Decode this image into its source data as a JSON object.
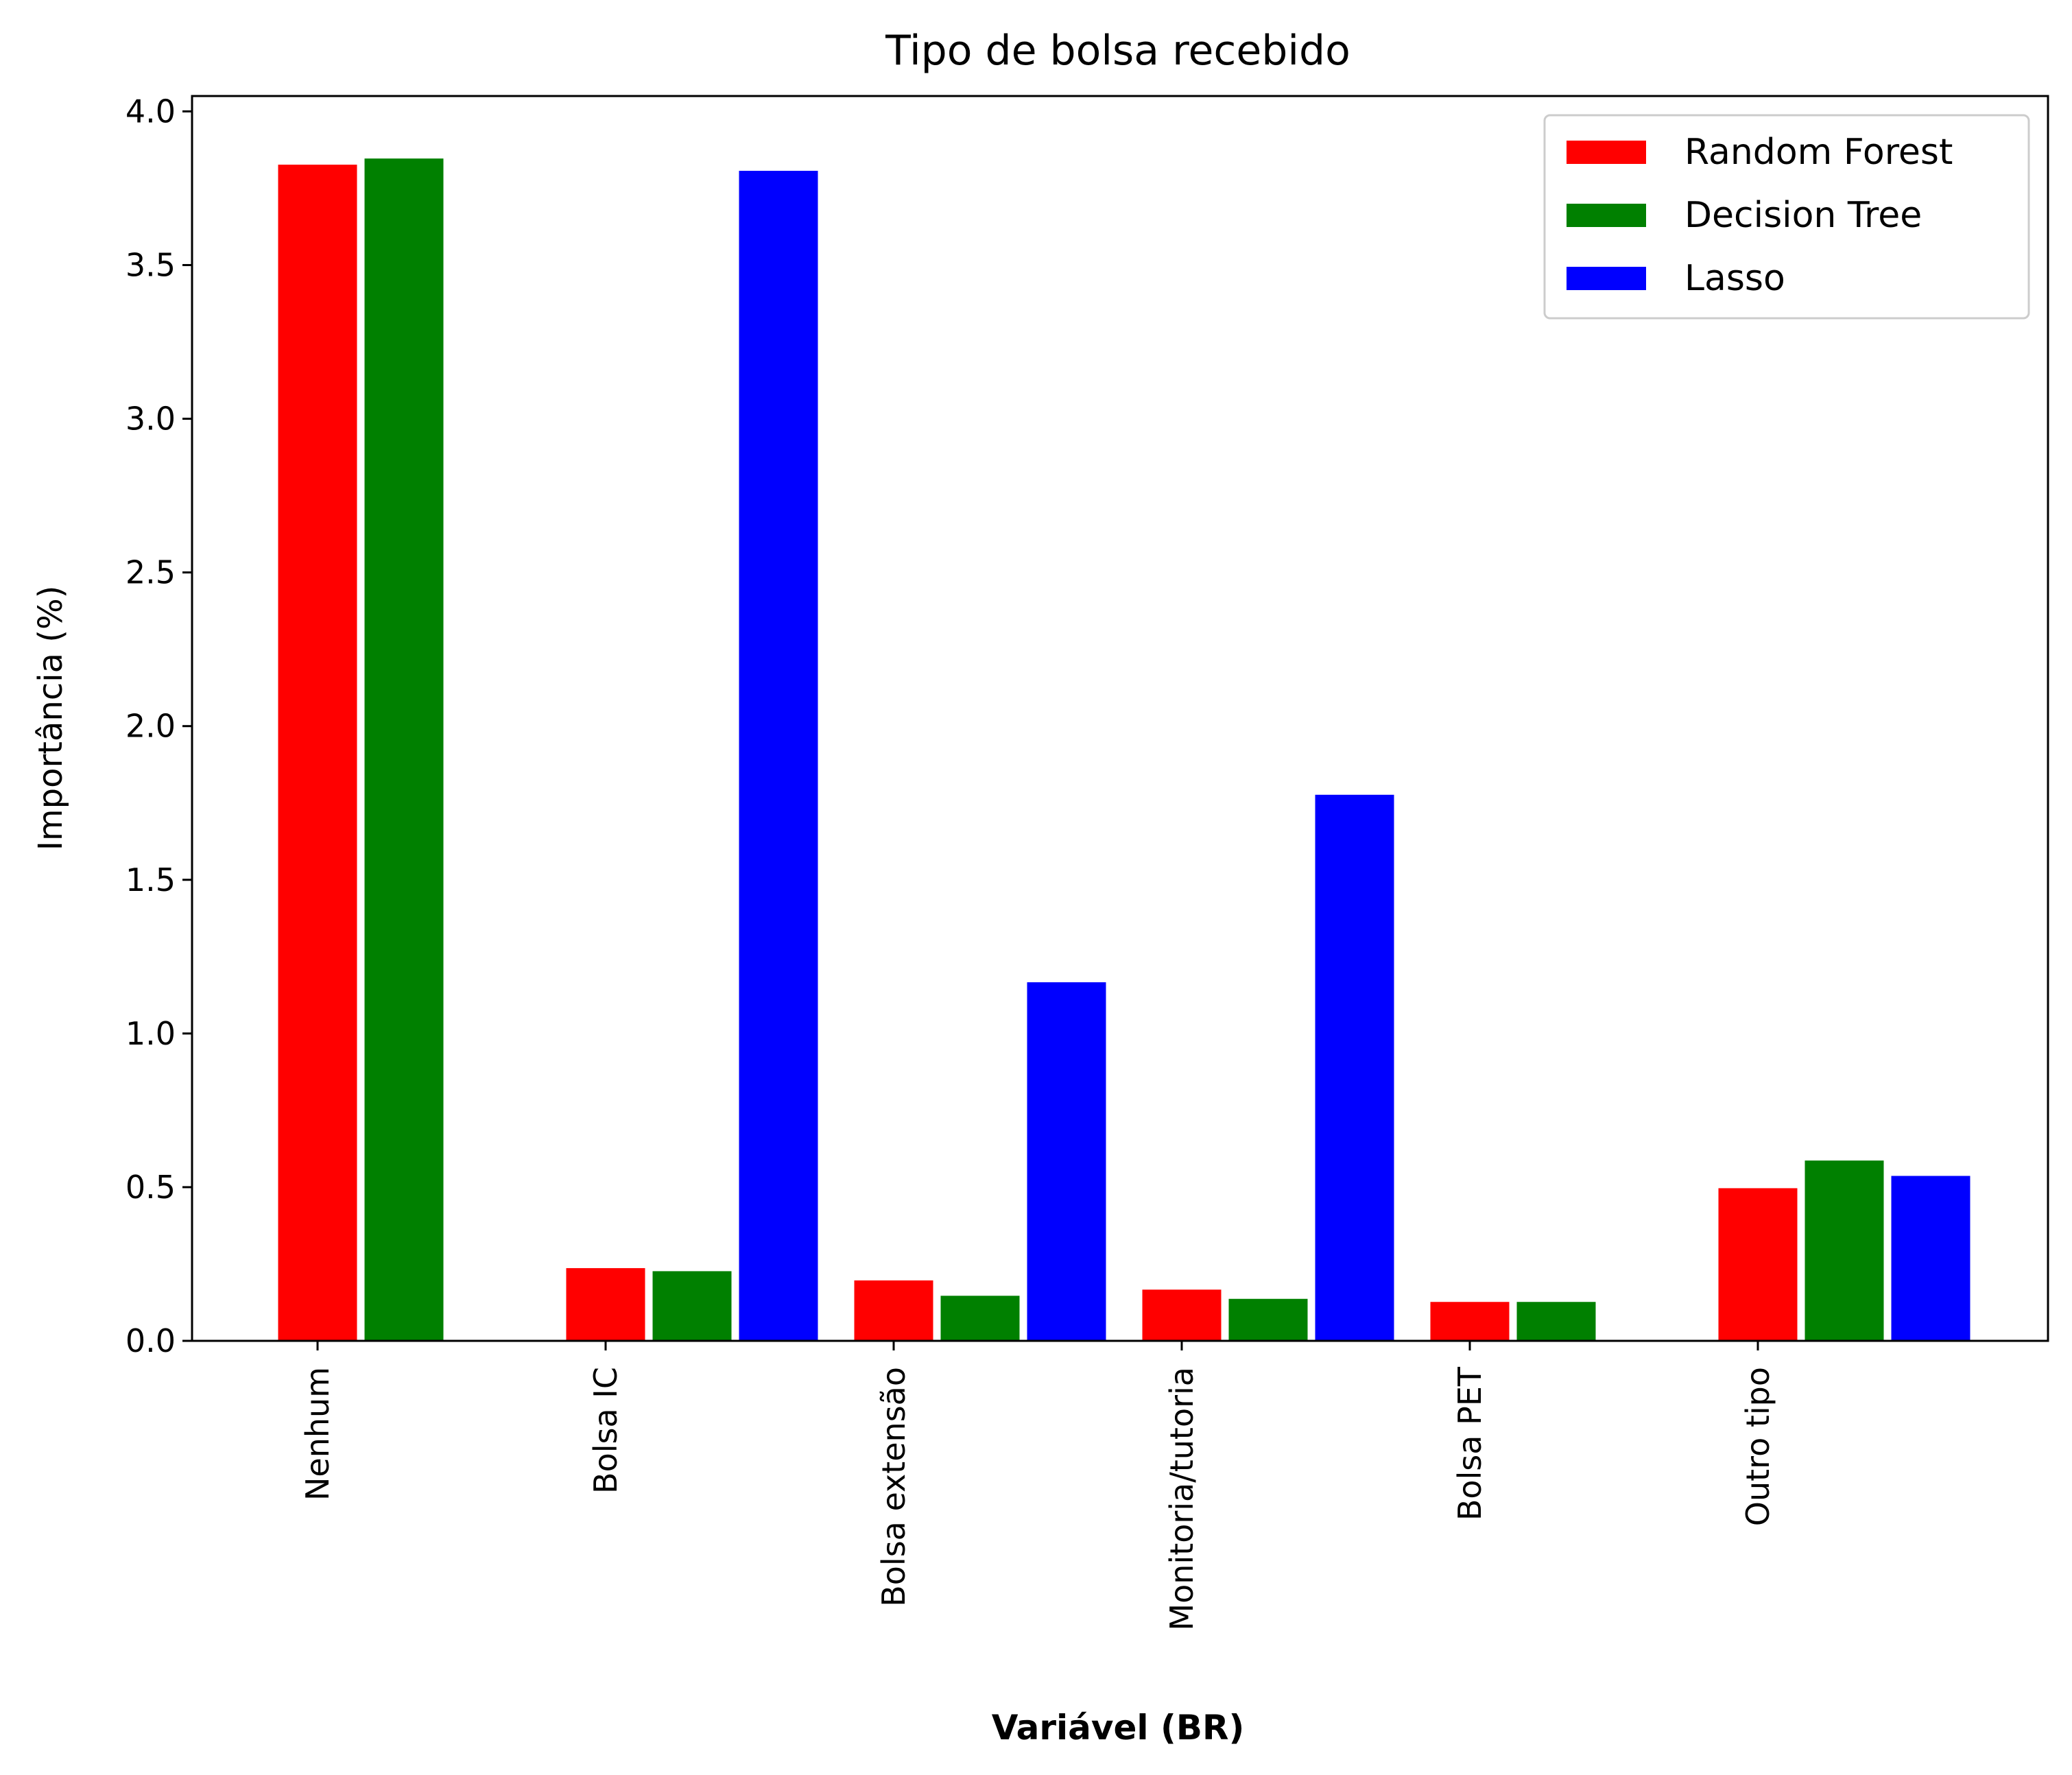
{
  "chart_data": {
    "type": "bar",
    "title": "Tipo de bolsa recebido",
    "xlabel": "Variável (BR)",
    "ylabel": "Importância (%)",
    "ylim": [
      0,
      4.05
    ],
    "yticks": [
      "0.0",
      "0.5",
      "1.0",
      "1.5",
      "2.0",
      "2.5",
      "3.0",
      "3.5",
      "4.0"
    ],
    "categories": [
      "Nenhum",
      "Bolsa IC",
      "Bolsa extensão",
      "Monitoria/tutoria",
      "Bolsa PET",
      "Outro tipo"
    ],
    "series": [
      {
        "name": "Random Forest",
        "color": "#ff0000",
        "values": [
          3.83,
          0.24,
          0.2,
          0.17,
          0.13,
          0.5
        ]
      },
      {
        "name": "Decision Tree",
        "color": "#008000",
        "values": [
          3.85,
          0.23,
          0.15,
          0.14,
          0.13,
          0.59
        ]
      },
      {
        "name": "Lasso",
        "color": "#0000ff",
        "values": [
          0.0,
          3.81,
          1.17,
          1.78,
          0.0,
          0.54
        ]
      }
    ],
    "grid": false,
    "legend_position": "top-right"
  }
}
